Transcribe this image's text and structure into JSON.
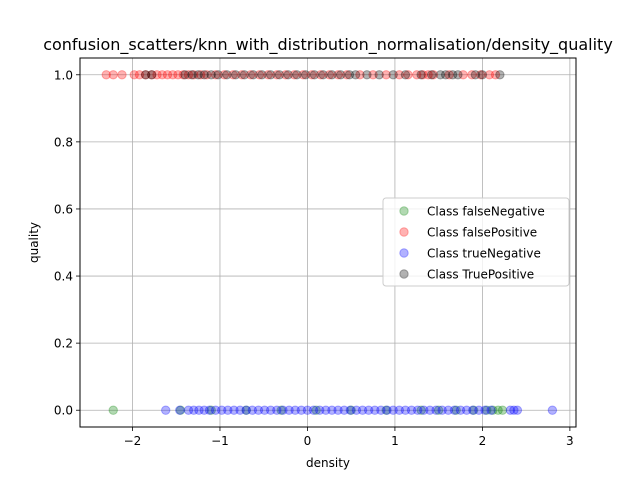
{
  "chart_data": {
    "type": "scatter",
    "title": "confusion_scatters/knn_with_distribution_normalisation/density_quality",
    "xlabel": "density",
    "ylabel": "quality",
    "xlim": [
      -2.6,
      3.07
    ],
    "ylim": [
      -0.05,
      1.05
    ],
    "x_ticks": [
      -2,
      -1,
      0,
      1,
      2,
      3
    ],
    "x_tick_labels": [
      "−2",
      "−1",
      "0",
      "1",
      "2",
      "3"
    ],
    "y_ticks": [
      0.0,
      0.2,
      0.4,
      0.6,
      0.8,
      1.0
    ],
    "y_tick_labels": [
      "0.0",
      "0.2",
      "0.4",
      "0.6",
      "0.8",
      "1.0"
    ],
    "grid": true,
    "legend_position": "center-right",
    "marker_alpha": 0.3,
    "series": [
      {
        "name": "Class falseNegative",
        "color": "#008000",
        "points": [
          {
            "x": -2.22,
            "y": 0
          },
          {
            "x": -1.45,
            "y": 0
          },
          {
            "x": -1.1,
            "y": 0
          },
          {
            "x": -0.7,
            "y": 0
          },
          {
            "x": -0.3,
            "y": 0
          },
          {
            "x": 0.1,
            "y": 0
          },
          {
            "x": 0.5,
            "y": 0
          },
          {
            "x": 0.9,
            "y": 0
          },
          {
            "x": 1.3,
            "y": 0
          },
          {
            "x": 1.5,
            "y": 0
          },
          {
            "x": 1.7,
            "y": 0
          },
          {
            "x": 1.9,
            "y": 0
          },
          {
            "x": 2.05,
            "y": 0
          },
          {
            "x": 2.12,
            "y": 0
          },
          {
            "x": 2.18,
            "y": 0
          },
          {
            "x": 2.23,
            "y": 0
          }
        ]
      },
      {
        "name": "Class falsePositive",
        "color": "#ff0000",
        "points": [
          {
            "x": -2.3,
            "y": 1
          },
          {
            "x": -2.22,
            "y": 1
          },
          {
            "x": -2.12,
            "y": 1
          },
          {
            "x": -1.98,
            "y": 1
          },
          {
            "x": -1.92,
            "y": 1
          },
          {
            "x": -1.85,
            "y": 1
          },
          {
            "x": -1.78,
            "y": 1
          },
          {
            "x": -1.72,
            "y": 1
          },
          {
            "x": -1.66,
            "y": 1
          },
          {
            "x": -1.6,
            "y": 1
          },
          {
            "x": -1.54,
            "y": 1
          },
          {
            "x": -1.48,
            "y": 1
          },
          {
            "x": -1.42,
            "y": 1
          },
          {
            "x": -1.36,
            "y": 1
          },
          {
            "x": -1.3,
            "y": 1
          },
          {
            "x": -1.22,
            "y": 1
          },
          {
            "x": -1.15,
            "y": 1
          },
          {
            "x": -1.05,
            "y": 1
          },
          {
            "x": -0.95,
            "y": 1
          },
          {
            "x": -0.85,
            "y": 1
          },
          {
            "x": -0.75,
            "y": 1
          },
          {
            "x": -0.65,
            "y": 1
          },
          {
            "x": -0.55,
            "y": 1
          },
          {
            "x": -0.45,
            "y": 1
          },
          {
            "x": -0.35,
            "y": 1
          },
          {
            "x": -0.25,
            "y": 1
          },
          {
            "x": -0.15,
            "y": 1
          },
          {
            "x": -0.05,
            "y": 1
          },
          {
            "x": 0.05,
            "y": 1
          },
          {
            "x": 0.15,
            "y": 1
          },
          {
            "x": 0.25,
            "y": 1
          },
          {
            "x": 0.35,
            "y": 1
          },
          {
            "x": 0.45,
            "y": 1
          },
          {
            "x": 0.6,
            "y": 1
          },
          {
            "x": 0.75,
            "y": 1
          },
          {
            "x": 0.9,
            "y": 1
          },
          {
            "x": 1.05,
            "y": 1
          },
          {
            "x": 1.15,
            "y": 1
          },
          {
            "x": 1.25,
            "y": 1
          },
          {
            "x": 1.32,
            "y": 1
          },
          {
            "x": 1.38,
            "y": 1
          },
          {
            "x": 1.44,
            "y": 1
          },
          {
            "x": 1.62,
            "y": 1
          },
          {
            "x": 1.78,
            "y": 1
          },
          {
            "x": 1.88,
            "y": 1
          },
          {
            "x": 1.98,
            "y": 1
          },
          {
            "x": 2.08,
            "y": 1
          },
          {
            "x": 2.15,
            "y": 1
          }
        ]
      },
      {
        "name": "Class trueNegative",
        "color": "#0000ff",
        "points": [
          {
            "x": -1.62,
            "y": 0
          },
          {
            "x": -1.46,
            "y": 0
          },
          {
            "x": -1.36,
            "y": 0
          },
          {
            "x": -1.3,
            "y": 0
          },
          {
            "x": -1.24,
            "y": 0
          },
          {
            "x": -1.18,
            "y": 0
          },
          {
            "x": -1.12,
            "y": 0
          },
          {
            "x": -1.05,
            "y": 0
          },
          {
            "x": -0.98,
            "y": 0
          },
          {
            "x": -0.91,
            "y": 0
          },
          {
            "x": -0.84,
            "y": 0
          },
          {
            "x": -0.77,
            "y": 0
          },
          {
            "x": -0.7,
            "y": 0
          },
          {
            "x": -0.63,
            "y": 0
          },
          {
            "x": -0.56,
            "y": 0
          },
          {
            "x": -0.49,
            "y": 0
          },
          {
            "x": -0.42,
            "y": 0
          },
          {
            "x": -0.35,
            "y": 0
          },
          {
            "x": -0.28,
            "y": 0
          },
          {
            "x": -0.21,
            "y": 0
          },
          {
            "x": -0.14,
            "y": 0
          },
          {
            "x": -0.07,
            "y": 0
          },
          {
            "x": 0.0,
            "y": 0
          },
          {
            "x": 0.07,
            "y": 0
          },
          {
            "x": 0.14,
            "y": 0
          },
          {
            "x": 0.21,
            "y": 0
          },
          {
            "x": 0.28,
            "y": 0
          },
          {
            "x": 0.35,
            "y": 0
          },
          {
            "x": 0.42,
            "y": 0
          },
          {
            "x": 0.49,
            "y": 0
          },
          {
            "x": 0.56,
            "y": 0
          },
          {
            "x": 0.63,
            "y": 0
          },
          {
            "x": 0.7,
            "y": 0
          },
          {
            "x": 0.77,
            "y": 0
          },
          {
            "x": 0.84,
            "y": 0
          },
          {
            "x": 0.91,
            "y": 0
          },
          {
            "x": 0.98,
            "y": 0
          },
          {
            "x": 1.05,
            "y": 0
          },
          {
            "x": 1.12,
            "y": 0
          },
          {
            "x": 1.19,
            "y": 0
          },
          {
            "x": 1.26,
            "y": 0
          },
          {
            "x": 1.33,
            "y": 0
          },
          {
            "x": 1.4,
            "y": 0
          },
          {
            "x": 1.47,
            "y": 0
          },
          {
            "x": 1.54,
            "y": 0
          },
          {
            "x": 1.61,
            "y": 0
          },
          {
            "x": 1.68,
            "y": 0
          },
          {
            "x": 1.75,
            "y": 0
          },
          {
            "x": 1.82,
            "y": 0
          },
          {
            "x": 1.89,
            "y": 0
          },
          {
            "x": 1.96,
            "y": 0
          },
          {
            "x": 2.03,
            "y": 0
          },
          {
            "x": 2.1,
            "y": 0
          },
          {
            "x": 2.32,
            "y": 0
          },
          {
            "x": 2.36,
            "y": 0
          },
          {
            "x": 2.4,
            "y": 0
          },
          {
            "x": 2.8,
            "y": 0
          }
        ]
      },
      {
        "name": "Class TruePositive",
        "color": "#000000",
        "points": [
          {
            "x": -1.85,
            "y": 1
          },
          {
            "x": -1.78,
            "y": 1
          },
          {
            "x": -1.4,
            "y": 1
          },
          {
            "x": -1.32,
            "y": 1
          },
          {
            "x": -1.25,
            "y": 1
          },
          {
            "x": -1.18,
            "y": 1
          },
          {
            "x": -1.1,
            "y": 1
          },
          {
            "x": -1.02,
            "y": 1
          },
          {
            "x": -0.92,
            "y": 1
          },
          {
            "x": -0.82,
            "y": 1
          },
          {
            "x": -0.72,
            "y": 1
          },
          {
            "x": -0.62,
            "y": 1
          },
          {
            "x": -0.52,
            "y": 1
          },
          {
            "x": -0.42,
            "y": 1
          },
          {
            "x": -0.32,
            "y": 1
          },
          {
            "x": -0.22,
            "y": 1
          },
          {
            "x": -0.12,
            "y": 1
          },
          {
            "x": -0.02,
            "y": 1
          },
          {
            "x": 0.08,
            "y": 1
          },
          {
            "x": 0.18,
            "y": 1
          },
          {
            "x": 0.28,
            "y": 1
          },
          {
            "x": 0.38,
            "y": 1
          },
          {
            "x": 0.48,
            "y": 1
          },
          {
            "x": 0.55,
            "y": 1
          },
          {
            "x": 0.68,
            "y": 1
          },
          {
            "x": 0.82,
            "y": 1
          },
          {
            "x": 0.98,
            "y": 1
          },
          {
            "x": 1.12,
            "y": 1
          },
          {
            "x": 1.3,
            "y": 1
          },
          {
            "x": 1.42,
            "y": 1
          },
          {
            "x": 1.52,
            "y": 1
          },
          {
            "x": 1.58,
            "y": 1
          },
          {
            "x": 1.66,
            "y": 1
          },
          {
            "x": 1.72,
            "y": 1
          },
          {
            "x": 1.92,
            "y": 1
          },
          {
            "x": 2.0,
            "y": 1
          },
          {
            "x": 2.2,
            "y": 1
          }
        ]
      }
    ]
  }
}
